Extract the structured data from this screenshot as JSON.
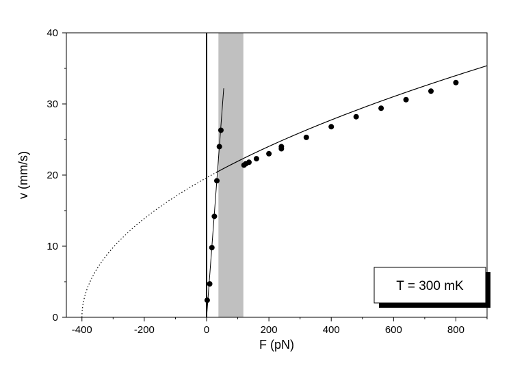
{
  "chart_data": {
    "type": "scatter",
    "xlabel": "F (pN)",
    "ylabel": "v (mm/s)",
    "xlim": [
      -450,
      900
    ],
    "ylim": [
      0,
      40
    ],
    "x_ticks": [
      -400,
      -200,
      0,
      200,
      400,
      600,
      800
    ],
    "y_ticks": [
      0,
      10,
      20,
      30,
      40
    ],
    "x_tick_labels": [
      "-400",
      "-200",
      "0",
      "200",
      "400",
      "600",
      "800"
    ],
    "y_tick_labels": [
      "0",
      "10",
      "20",
      "30",
      "40"
    ],
    "grid": false,
    "shaded_band": {
      "x_from": 38,
      "x_to": 118,
      "color": "#c0c0c0"
    },
    "vertical_line_x": 0,
    "series": [
      {
        "points": [
          {
            "x": 2,
            "y": 2.4
          },
          {
            "x": 10,
            "y": 4.7
          },
          {
            "x": 17,
            "y": 9.8
          },
          {
            "x": 25,
            "y": 14.2
          },
          {
            "x": 33,
            "y": 19.2
          },
          {
            "x": 41,
            "y": 24.0
          },
          {
            "x": 46,
            "y": 26.3
          }
        ],
        "fit_line": [
          {
            "x": 0,
            "y": 0
          },
          {
            "x": 55,
            "y": 32.2
          }
        ]
      },
      {
        "points": [
          {
            "x": 120,
            "y": 21.4
          },
          {
            "x": 126,
            "y": 21.6
          },
          {
            "x": 136,
            "y": 21.8
          },
          {
            "x": 160,
            "y": 22.3
          },
          {
            "x": 200,
            "y": 23.0
          },
          {
            "x": 240,
            "y": 23.7
          },
          {
            "x": 240,
            "y": 24.0
          },
          {
            "x": 320,
            "y": 25.3
          },
          {
            "x": 400,
            "y": 26.8
          },
          {
            "x": 480,
            "y": 28.2
          },
          {
            "x": 560,
            "y": 29.4
          },
          {
            "x": 640,
            "y": 30.6
          },
          {
            "x": 720,
            "y": 31.8
          },
          {
            "x": 800,
            "y": 33.0
          }
        ],
        "fit_curve": {
          "x0": -400,
          "k": 0.9811,
          "x_from": 30,
          "x_to": 900
        },
        "extrapolation": {
          "x_from": -400,
          "x_to": 30,
          "style": "dotted"
        }
      }
    ],
    "legend": {
      "text": "T = 300 mK",
      "placement": "bottom-right"
    }
  }
}
